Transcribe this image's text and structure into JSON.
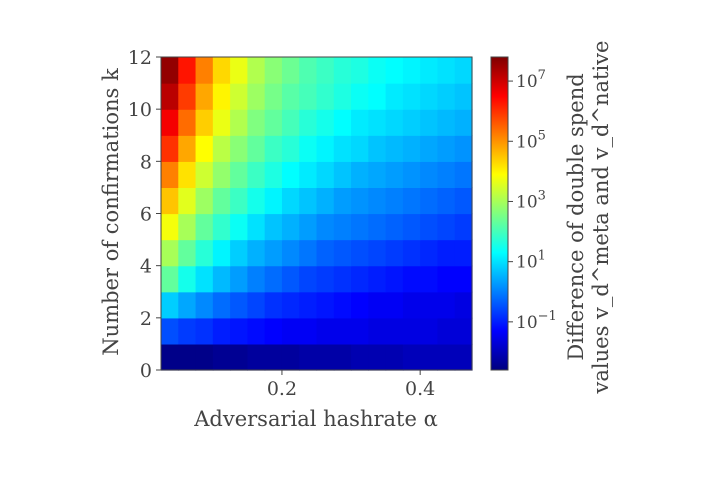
{
  "chart_data": {
    "type": "heatmap",
    "title": "",
    "xlabel": "Adversarial hashrate α",
    "ylabel": "Number of confirmations k",
    "colorbar_label_line1": "Difference of double spend",
    "colorbar_label_line2": "values v_d^meta and v_d^native",
    "x_tick_values": [
      0.2,
      0.4
    ],
    "x_tick_labels": [
      "0.2",
      "0.4"
    ],
    "y_tick_values": [
      0,
      2,
      4,
      6,
      8,
      10,
      12
    ],
    "y_tick_labels": [
      "0",
      "2",
      "4",
      "6",
      "8",
      "10",
      "12"
    ],
    "colorbar_tick_exponents": [
      -1,
      1,
      3,
      5,
      7
    ],
    "colorbar_tick_labels": [
      "10^-1",
      "10^1",
      "10^3",
      "10^5",
      "10^7"
    ],
    "colorbar_log_range": [
      -2.6,
      7.8
    ],
    "colormap": "jet",
    "color_scale": "log",
    "x_bins": 18,
    "x_range": [
      0.025,
      0.475
    ],
    "k_range": [
      0,
      12
    ],
    "k_values": [
      0,
      1,
      2,
      3,
      4,
      5,
      6,
      7,
      8,
      9,
      10,
      11
    ],
    "log10_values": [
      [
        -2.5,
        -2.5,
        -2.5,
        -2.4,
        -2.4,
        -2.3,
        -2.3,
        -2.3,
        -2.2,
        -2.2,
        -2.2,
        -2.1,
        -2.1,
        -2.1,
        -2.0,
        -2.0,
        -2.0,
        -2.0
      ],
      [
        -0.5,
        -0.7,
        -0.8,
        -1.0,
        -1.1,
        -1.2,
        -1.3,
        -1.4,
        -1.4,
        -1.5,
        -1.5,
        -1.5,
        -1.6,
        -1.6,
        -1.6,
        -1.6,
        -1.7,
        -1.7
      ],
      [
        0.8,
        0.4,
        0.1,
        -0.2,
        -0.4,
        -0.6,
        -0.8,
        -0.9,
        -1.0,
        -1.1,
        -1.2,
        -1.3,
        -1.4,
        -1.4,
        -1.5,
        -1.5,
        -1.5,
        -1.6
      ],
      [
        2.3,
        1.5,
        1.0,
        0.6,
        0.3,
        0.0,
        -0.2,
        -0.4,
        -0.6,
        -0.7,
        -0.8,
        -0.9,
        -1.0,
        -1.1,
        -1.2,
        -1.2,
        -1.3,
        -1.3
      ],
      [
        3.0,
        2.3,
        1.7,
        1.2,
        0.8,
        0.5,
        0.3,
        0.1,
        -0.1,
        -0.3,
        -0.4,
        -0.5,
        -0.6,
        -0.7,
        -0.8,
        -0.9,
        -1.0,
        -1.0
      ],
      [
        3.8,
        3.0,
        2.3,
        1.8,
        1.4,
        1.0,
        0.7,
        0.5,
        0.3,
        0.1,
        0.0,
        -0.1,
        -0.2,
        -0.3,
        -0.4,
        -0.5,
        -0.6,
        -0.7
      ],
      [
        4.5,
        3.6,
        2.9,
        2.3,
        1.9,
        1.5,
        1.2,
        0.9,
        0.7,
        0.5,
        0.3,
        0.2,
        0.1,
        0.0,
        -0.1,
        -0.2,
        -0.3,
        -0.4
      ],
      [
        5.2,
        4.2,
        3.4,
        2.8,
        2.3,
        1.9,
        1.6,
        1.3,
        1.1,
        0.9,
        0.7,
        0.5,
        0.4,
        0.3,
        0.2,
        0.1,
        0.0,
        -0.1
      ],
      [
        6.0,
        4.8,
        3.9,
        3.2,
        2.7,
        2.3,
        1.9,
        1.7,
        1.4,
        1.2,
        1.0,
        0.9,
        0.7,
        0.6,
        0.5,
        0.4,
        0.3,
        0.2
      ],
      [
        6.6,
        5.4,
        4.4,
        3.7,
        3.1,
        2.6,
        2.3,
        2.0,
        1.7,
        1.5,
        1.3,
        1.1,
        1.0,
        0.9,
        0.8,
        0.7,
        0.6,
        0.5
      ],
      [
        7.2,
        5.9,
        4.8,
        4.0,
        3.4,
        2.9,
        2.5,
        2.2,
        2.0,
        1.8,
        1.6,
        1.4,
        1.3,
        1.1,
        1.0,
        0.9,
        0.8,
        0.7
      ],
      [
        7.6,
        6.3,
        5.2,
        4.3,
        3.7,
        3.1,
        2.7,
        2.4,
        2.1,
        1.9,
        1.7,
        1.6,
        1.4,
        1.3,
        1.2,
        1.1,
        1.0,
        0.9
      ]
    ]
  }
}
